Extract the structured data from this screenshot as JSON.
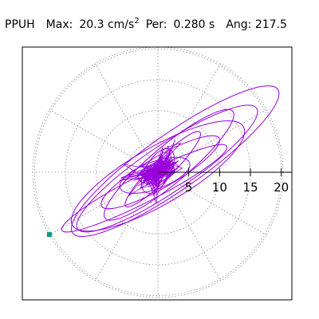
{
  "header": {
    "station": "PPUH",
    "max_label": "Max:",
    "max_value": "20.3",
    "max_unit": "cm/s",
    "max_unit_exp": "2",
    "per_label": "Per:",
    "per_value": "0.280",
    "per_unit": "s",
    "ang_label": "Ang:",
    "ang_value": "217.5"
  },
  "chart_data": {
    "type": "polar-particle-motion",
    "radial_ticks": [
      5,
      10,
      15,
      20
    ],
    "radial_tick_labels": [
      "5",
      "10",
      "15",
      "20"
    ],
    "rlim": [
      0,
      20.3
    ],
    "angular_grid_step_deg": 30,
    "grid": true,
    "trace_color": "#9900dd",
    "marker_color": "#009977",
    "marker_point": {
      "x": -17.6,
      "y": -10.1
    },
    "traces": [
      {
        "major": 20.3,
        "minor": 4.5,
        "angle_deg": 35,
        "cx": 2.8,
        "cy": 1.8
      },
      {
        "major": 17.5,
        "minor": 3.8,
        "angle_deg": 34,
        "cx": 1.5,
        "cy": 0.6
      },
      {
        "major": 16.0,
        "minor": 4.6,
        "angle_deg": 30,
        "cx": 0.0,
        "cy": -0.6
      },
      {
        "major": 13.5,
        "minor": 3.0,
        "angle_deg": 40,
        "cx": 1.8,
        "cy": 1.2
      },
      {
        "major": 15.0,
        "minor": 2.2,
        "angle_deg": 27,
        "cx": -2.2,
        "cy": -2.6
      },
      {
        "major": 11.0,
        "minor": 2.5,
        "angle_deg": 30,
        "cx": 0.4,
        "cy": 0.0
      },
      {
        "major": 8.5,
        "minor": 1.6,
        "angle_deg": 45,
        "cx": 0.8,
        "cy": 0.5
      },
      {
        "major": 6.0,
        "minor": 2.2,
        "angle_deg": 20,
        "cx": -0.5,
        "cy": -0.5
      },
      {
        "major": 4.0,
        "minor": 2.0,
        "angle_deg": 60,
        "cx": 0.0,
        "cy": 0.2
      },
      {
        "major": 3.0,
        "minor": 1.5,
        "angle_deg": 15,
        "cx": -0.3,
        "cy": -0.2
      }
    ]
  }
}
